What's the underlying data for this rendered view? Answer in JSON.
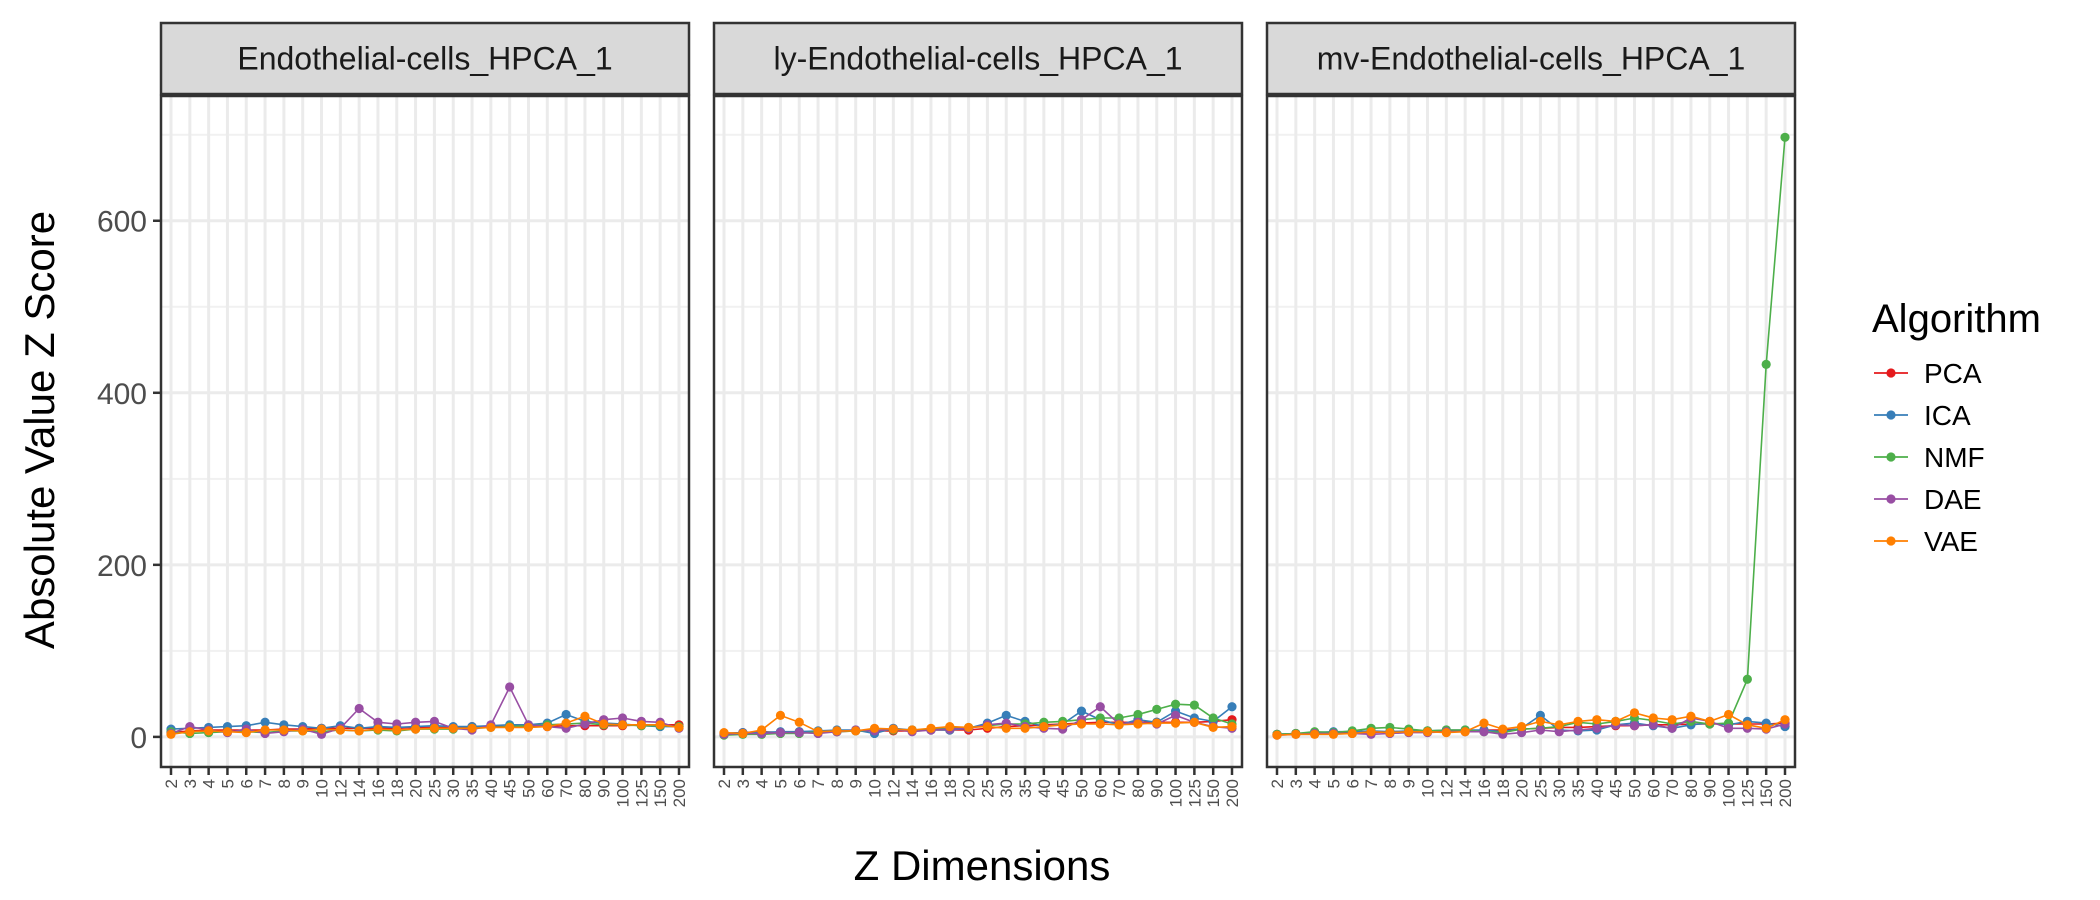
{
  "chart_data": {
    "type": "line",
    "ylabel": "Absolute Value Z Score",
    "xlabel": "Z Dimensions",
    "ylim": [
      -35,
      745
    ],
    "yticks": [
      0,
      200,
      400,
      600
    ],
    "grid": true,
    "legend": {
      "title": "Algorithm",
      "position": "right"
    },
    "categories": [
      "2",
      "3",
      "4",
      "5",
      "6",
      "7",
      "8",
      "9",
      "10",
      "12",
      "14",
      "16",
      "18",
      "20",
      "25",
      "30",
      "35",
      "40",
      "45",
      "50",
      "60",
      "70",
      "80",
      "90",
      "100",
      "125",
      "150",
      "200"
    ],
    "series_meta": [
      {
        "name": "PCA",
        "color": "#E41A1C"
      },
      {
        "name": "ICA",
        "color": "#377EB8"
      },
      {
        "name": "NMF",
        "color": "#4DAF4A"
      },
      {
        "name": "DAE",
        "color": "#984EA3"
      },
      {
        "name": "VAE",
        "color": "#FF7F00"
      }
    ],
    "panels": [
      {
        "title": "Endothelial-cells_HPCA_1",
        "series": [
          {
            "name": "PCA",
            "values": [
              5,
              7,
              8,
              8,
              8,
              8,
              9,
              9,
              10,
              10,
              10,
              10,
              10,
              11,
              11,
              11,
              12,
              12,
              12,
              12,
              12,
              13,
              13,
              13,
              13,
              14,
              14,
              14
            ]
          },
          {
            "name": "ICA",
            "values": [
              9,
              10,
              11,
              12,
              13,
              17,
              14,
              12,
              10,
              13,
              10,
              12,
              11,
              12,
              13,
              12,
              12,
              13,
              14,
              14,
              16,
              26,
              18,
              16,
              15,
              13,
              12,
              12
            ]
          },
          {
            "name": "NMF",
            "values": [
              6,
              4,
              5,
              6,
              6,
              5,
              7,
              7,
              6,
              8,
              7,
              8,
              7,
              9,
              9,
              9,
              10,
              11,
              12,
              13,
              14,
              15,
              16,
              14,
              14,
              13,
              13,
              12
            ]
          },
          {
            "name": "DAE",
            "values": [
              4,
              12,
              8,
              5,
              9,
              4,
              6,
              9,
              3,
              10,
              33,
              17,
              15,
              17,
              18,
              10,
              8,
              14,
              58,
              14,
              12,
              10,
              15,
              20,
              22,
              18,
              17,
              10
            ]
          },
          {
            "name": "VAE",
            "values": [
              3,
              6,
              7,
              6,
              5,
              8,
              8,
              7,
              9,
              8,
              7,
              9,
              8,
              9,
              10,
              10,
              10,
              11,
              11,
              11,
              12,
              16,
              24,
              15,
              14,
              14,
              14,
              11
            ]
          }
        ]
      },
      {
        "title": "ly-Endothelial-cells_HPCA_1",
        "series": [
          {
            "name": "PCA",
            "values": [
              4,
              5,
              6,
              5,
              6,
              6,
              6,
              7,
              7,
              7,
              7,
              8,
              8,
              8,
              10,
              12,
              13,
              14,
              15,
              16,
              17,
              17,
              17,
              17,
              17,
              17,
              18,
              20
            ]
          },
          {
            "name": "ICA",
            "values": [
              4,
              5,
              5,
              6,
              6,
              7,
              8,
              8,
              4,
              10,
              8,
              8,
              8,
              10,
              16,
              25,
              18,
              12,
              15,
              30,
              20,
              14,
              20,
              17,
              30,
              22,
              18,
              35
            ]
          },
          {
            "name": "NMF",
            "values": [
              2,
              3,
              3,
              4,
              4,
              6,
              6,
              7,
              8,
              8,
              8,
              9,
              10,
              11,
              13,
              15,
              15,
              17,
              18,
              20,
              22,
              22,
              26,
              32,
              38,
              37,
              22,
              15
            ]
          },
          {
            "name": "DAE",
            "values": [
              3,
              4,
              4,
              5,
              5,
              4,
              6,
              8,
              7,
              9,
              6,
              8,
              9,
              10,
              14,
              16,
              12,
              10,
              9,
              20,
              35,
              15,
              17,
              15,
              25,
              17,
              12,
              10
            ]
          },
          {
            "name": "VAE",
            "values": [
              5,
              4,
              8,
              25,
              17,
              6,
              7,
              7,
              10,
              9,
              8,
              10,
              12,
              11,
              12,
              10,
              10,
              12,
              14,
              15,
              15,
              14,
              15,
              16,
              16,
              17,
              11,
              12
            ]
          }
        ]
      },
      {
        "title": "mv-Endothelial-cells_HPCA_1",
        "series": [
          {
            "name": "PCA",
            "values": [
              3,
              4,
              4,
              5,
              5,
              5,
              6,
              6,
              6,
              7,
              7,
              8,
              8,
              9,
              10,
              11,
              11,
              12,
              13,
              13,
              14,
              14,
              15,
              15,
              15,
              15,
              15,
              16
            ]
          },
          {
            "name": "ICA",
            "values": [
              3,
              4,
              5,
              6,
              6,
              7,
              6,
              7,
              7,
              8,
              8,
              8,
              6,
              10,
              25,
              8,
              7,
              8,
              14,
              16,
              13,
              10,
              14,
              16,
              14,
              18,
              16,
              12
            ]
          },
          {
            "name": "NMF",
            "values": [
              3,
              4,
              6,
              5,
              7,
              10,
              11,
              9,
              7,
              8,
              8,
              6,
              5,
              9,
              10,
              12,
              17,
              15,
              18,
              22,
              19,
              15,
              18,
              15,
              16,
              67,
              433,
              697
            ]
          },
          {
            "name": "DAE",
            "values": [
              2,
              3,
              4,
              4,
              4,
              3,
              4,
              5,
              5,
              6,
              6,
              6,
              3,
              5,
              8,
              6,
              8,
              10,
              14,
              13,
              14,
              10,
              22,
              18,
              10,
              10,
              9,
              15
            ]
          },
          {
            "name": "VAE",
            "values": [
              2,
              3,
              3,
              3,
              4,
              6,
              5,
              6,
              6,
              5,
              6,
              16,
              9,
              12,
              18,
              14,
              18,
              20,
              18,
              28,
              22,
              20,
              24,
              18,
              26,
              14,
              10,
              20
            ]
          }
        ]
      }
    ]
  }
}
